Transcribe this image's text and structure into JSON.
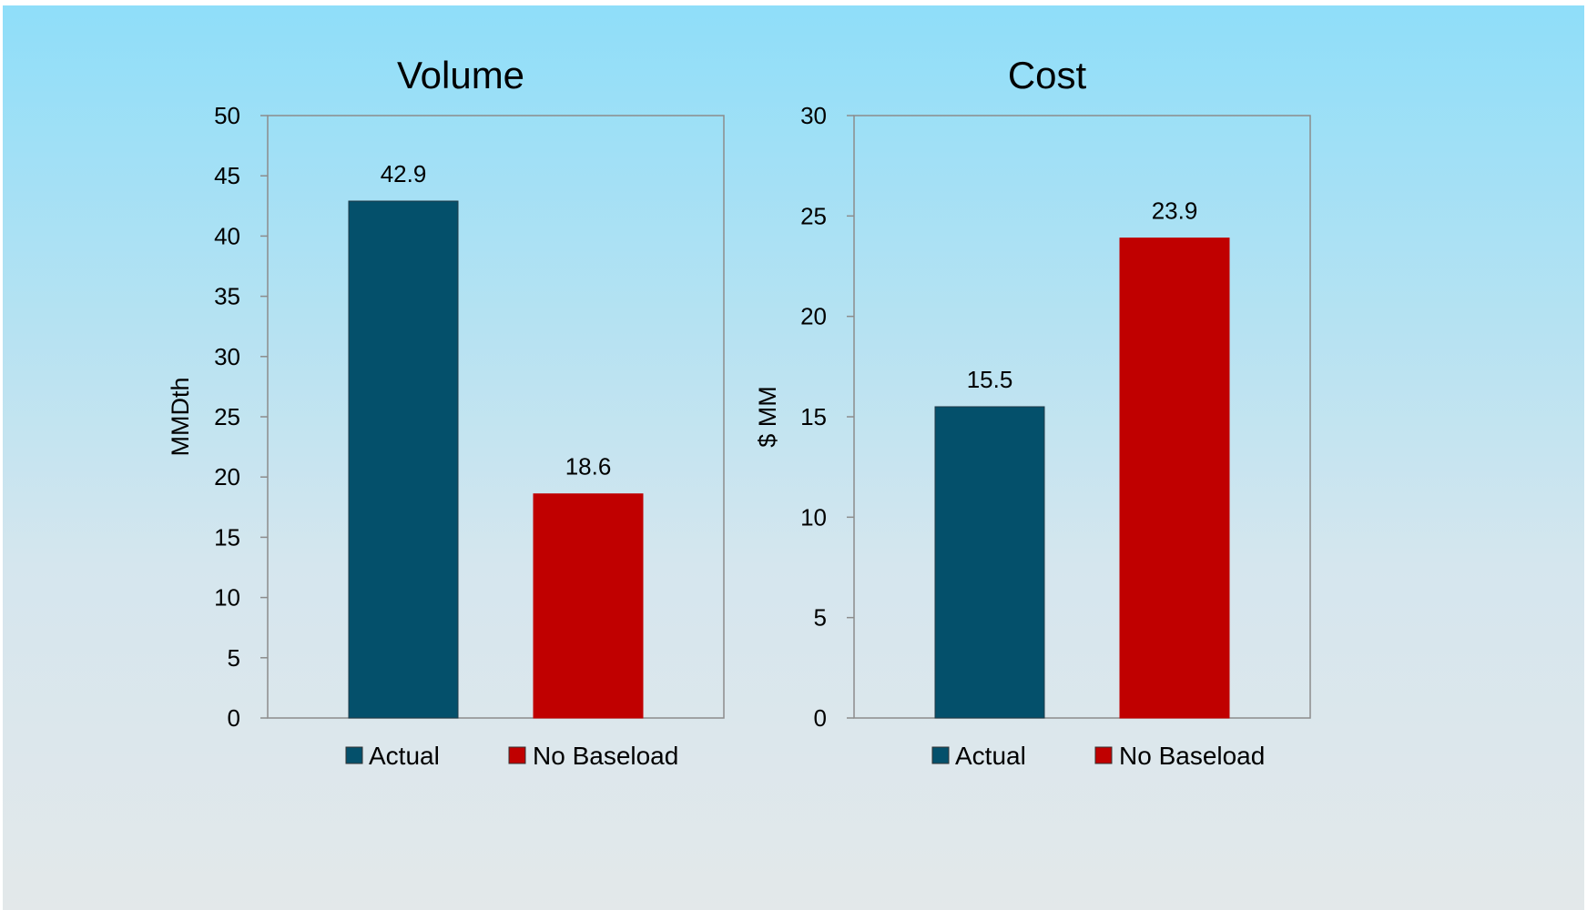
{
  "chart_data": [
    {
      "type": "bar",
      "title": "Volume",
      "ylabel": "MMDth",
      "ylim": [
        0,
        50
      ],
      "ytick_step": 5,
      "categories": [
        "Actual",
        "No Baseload"
      ],
      "values": [
        42.9,
        18.6
      ],
      "value_labels": [
        "42.9",
        "18.6"
      ],
      "colors": [
        "#04506b",
        "#c00000"
      ],
      "legend": [
        {
          "label": "Actual",
          "color": "#04506b"
        },
        {
          "label": "No Baseload",
          "color": "#c00000"
        }
      ],
      "legend_position": "bottom",
      "grid": false
    },
    {
      "type": "bar",
      "title": "Cost",
      "ylabel": "$ MM",
      "ylim": [
        0,
        30
      ],
      "ytick_step": 5,
      "categories": [
        "Actual",
        "No Baseload"
      ],
      "values": [
        15.5,
        23.9
      ],
      "value_labels": [
        "15.5",
        "23.9"
      ],
      "colors": [
        "#04506b",
        "#c00000"
      ],
      "legend": [
        {
          "label": "Actual",
          "color": "#04506b"
        },
        {
          "label": "No Baseload",
          "color": "#c00000"
        }
      ],
      "legend_position": "bottom",
      "grid": false
    }
  ]
}
